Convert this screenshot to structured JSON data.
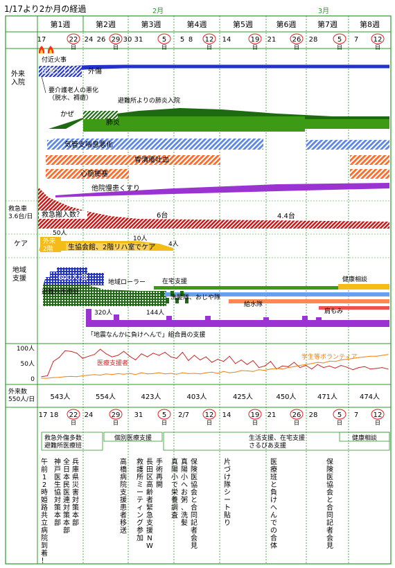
{
  "title": "1/17より2か月の経過",
  "months": [
    "2月",
    "3月"
  ],
  "weeks": [
    "第1週",
    "第2週",
    "第3週",
    "第4週",
    "第5週",
    "第6週",
    "第7週",
    "第8週"
  ],
  "dates": [
    {
      "t": "17",
      "c": false,
      "x": 60
    },
    {
      "t": "22",
      "c": true,
      "x": 106
    },
    {
      "t": "24",
      "c": false,
      "x": 128
    },
    {
      "t": "26",
      "c": false,
      "x": 146
    },
    {
      "t": "29",
      "c": true,
      "x": 167
    },
    {
      "t": "30",
      "c": false,
      "x": 184
    },
    {
      "t": "31",
      "c": false,
      "x": 200
    },
    {
      "t": "5",
      "c": true,
      "x": 237
    },
    {
      "t": "5",
      "c": false,
      "x": 263
    },
    {
      "t": "8",
      "c": false,
      "x": 275
    },
    {
      "t": "12",
      "c": true,
      "x": 302
    },
    {
      "t": "14",
      "c": false,
      "x": 327
    },
    {
      "t": "19",
      "c": true,
      "x": 368
    },
    {
      "t": "21",
      "c": false,
      "x": 392
    },
    {
      "t": "26",
      "c": true,
      "x": 428
    },
    {
      "t": "28",
      "c": false,
      "x": 452
    },
    {
      "t": "5",
      "c": true,
      "x": 490
    },
    {
      "t": "7",
      "c": false,
      "x": 514
    },
    {
      "t": "12",
      "c": true,
      "x": 545
    }
  ],
  "sunday_label": "日",
  "bottom_dates": [
    {
      "t": "17 18",
      "c": false,
      "x": 70
    },
    {
      "t": "22",
      "c": true,
      "x": 106
    },
    {
      "t": "24",
      "c": false,
      "x": 128
    },
    {
      "t": "29",
      "c": true,
      "x": 167
    },
    {
      "t": "31",
      "c": false,
      "x": 200
    },
    {
      "t": "5",
      "c": true,
      "x": 237
    },
    {
      "t": "2/7",
      "c": false,
      "x": 265
    },
    {
      "t": "12",
      "c": true,
      "x": 302
    },
    {
      "t": "14",
      "c": false,
      "x": 327
    },
    {
      "t": "19",
      "c": true,
      "x": 368
    },
    {
      "t": "21",
      "c": false,
      "x": 392
    },
    {
      "t": "26",
      "c": true,
      "x": 428
    },
    {
      "t": "28",
      "c": false,
      "x": 452
    },
    {
      "t": "5",
      "c": true,
      "x": 490
    },
    {
      "t": "7",
      "c": false,
      "x": 514
    },
    {
      "t": "12",
      "c": true,
      "x": 545
    }
  ],
  "section_labels": {
    "gairai": "外来\n入院",
    "kyukyu": "救急車\n3.6台/日",
    "care": "ケア",
    "chiiki": "地域\n支援",
    "gairai_count": "外来数\n550人/日"
  },
  "outpatient": {
    "fire": "付近火事",
    "a1": "圧死：17人",
    "a2": "外傷",
    "a3": "要介護老人の悪化\n（脱水、褥瘡）",
    "a4": "避難所よりの肺炎入院",
    "a5": "かぜ",
    "a6": "肺炎",
    "a7": "気管支喘息悪化",
    "a8": "胃潰瘍吐血",
    "a9": "心筋梗塞",
    "a10": "他院慢患くすり"
  },
  "ambulance": {
    "label": "救急搬入数？",
    "v1": "6台",
    "v2": "4.4台"
  },
  "care": {
    "c1": "50人",
    "c2": "外来\n2階",
    "c3": "生協会館、2階リハ室でケア",
    "c4": "10人",
    "c5": "4人"
  },
  "regional": {
    "r1": "600人/日",
    "r2": "避難所医療班",
    "r3": "地域ローラー",
    "r4": "在宅支援",
    "r5": "健康相談",
    "r6": "洗髪隊、おじや隊",
    "r7": "給水隊",
    "r8": "肩もみ",
    "r9": "320人",
    "r10": "144人",
    "r11": "「地震なんかに負けへんで」組合員の支援",
    "y100": "100人",
    "y50": "50人",
    "y0": "0",
    "series_doc": "医療支援者",
    "series_vol": "学生等ボランティア"
  },
  "colors": {
    "blue": "#2233cc",
    "green": "#3c9a14",
    "dkgreen": "#1d6a12",
    "ltblue": "#5a86e8",
    "orange": "#ff6a28",
    "red": "#cc1111",
    "purple": "#9a33d2",
    "maroon": "#b8102a",
    "yellow": "#f4bc18",
    "gridgreen": "#2a9a2a",
    "med": "#c82828",
    "vol": "#f08010"
  },
  "chart_data": [
    {
      "type": "line",
      "title": "",
      "xlabel": "",
      "ylabel": "",
      "ylim": [
        0,
        100
      ],
      "yticks": [
        "100人",
        "50人",
        "0"
      ],
      "x": [
        "1/17",
        "1/18",
        "1/19",
        "1/20",
        "1/21",
        "1/22",
        "1/23",
        "1/24",
        "1/25",
        "1/26",
        "1/27",
        "1/28",
        "1/29",
        "1/30",
        "1/31",
        "2/1",
        "2/2",
        "2/3",
        "2/4",
        "2/5",
        "2/6",
        "2/7",
        "2/8",
        "2/9",
        "2/10",
        "2/11",
        "2/12",
        "2/13",
        "2/14",
        "2/15",
        "2/16",
        "2/17",
        "2/18",
        "2/19",
        "2/20",
        "2/21",
        "2/22",
        "2/23",
        "2/24",
        "2/25",
        "2/26",
        "2/27",
        "2/28",
        "3/1",
        "3/2",
        "3/3",
        "3/4",
        "3/5",
        "3/6",
        "3/7",
        "3/8",
        "3/9",
        "3/10",
        "3/11",
        "3/12",
        "3/13",
        "3/14",
        "3/15",
        "3/16",
        "3/17"
      ],
      "series": [
        {
          "name": "医療支援者",
          "values": [
            5,
            8,
            55,
            68,
            90,
            88,
            82,
            65,
            72,
            78,
            95,
            80,
            70,
            75,
            88,
            72,
            60,
            80,
            70,
            82,
            75,
            85,
            70,
            65,
            85,
            58,
            75,
            60,
            70,
            52,
            62,
            55,
            72,
            48,
            60,
            45,
            58,
            35,
            40,
            55,
            30,
            40,
            38,
            52,
            35,
            42,
            30,
            45,
            35,
            40,
            33,
            42,
            36,
            28,
            35,
            38,
            30,
            32,
            35,
            30
          ]
        },
        {
          "name": "学生等ボランティア",
          "values": [
            0,
            0,
            2,
            3,
            5,
            6,
            5,
            8,
            10,
            12,
            10,
            14,
            12,
            15,
            13,
            16,
            12,
            18,
            14,
            15,
            18,
            14,
            16,
            13,
            18,
            15,
            16,
            14,
            18,
            20,
            16,
            22,
            18,
            20,
            25,
            24,
            22,
            28,
            26,
            30,
            32,
            30,
            35,
            38,
            42,
            45,
            48,
            52,
            50,
            56,
            55,
            60,
            62,
            65,
            68,
            70,
            72,
            72,
            75,
            78
          ]
        }
      ]
    },
    {
      "type": "table",
      "title": "外来数",
      "categories": [
        "第1週",
        "第2週",
        "第3週",
        "第4週",
        "第5週",
        "第6週",
        "第7週",
        "第8週"
      ],
      "values": [
        "543人",
        "554人",
        "423人",
        "403人",
        "425人",
        "450人",
        "471人",
        "474人"
      ]
    }
  ],
  "support_boxes": [
    {
      "t": "救急外傷多数\n避難所医療班",
      "x": 60,
      "w": 88
    },
    {
      "t": "個別医療支援",
      "x": 150,
      "w": 84
    },
    {
      "t": "生活支援、在宅支援\nさるびあ支援",
      "x": 236,
      "w": 326
    },
    {
      "t": "健康相談",
      "x": 490,
      "w": 72
    }
  ],
  "notes": [
    {
      "t": "午前12時姫路共立病院到着！",
      "x": 64
    },
    {
      "t": "兵庫県災害対策本部",
      "x": 109
    },
    {
      "t": "全日本民医連対策本部",
      "x": 96
    },
    {
      "t": "神戸医生協対策本部",
      "x": 83
    },
    {
      "t": "高橋病院支援患者移送",
      "x": 178
    },
    {
      "t": "救護所ミーティング参加",
      "x": 202
    },
    {
      "t": "長田区高齢者緊急支援NW",
      "x": 216
    },
    {
      "t": "手術再開",
      "x": 230
    },
    {
      "t": "真陽小へお粥、洗髪",
      "x": 266
    },
    {
      "t": "真陽小で栄養調査",
      "x": 252
    },
    {
      "t": "保険医協会と合同記者会見",
      "x": 280
    },
    {
      "t": "片づけ隊シート貼り",
      "x": 328
    },
    {
      "t": "医療班と負けへんでの合体",
      "x": 395
    },
    {
      "t": "保険医協会と合同記者会見",
      "x": 476
    }
  ]
}
